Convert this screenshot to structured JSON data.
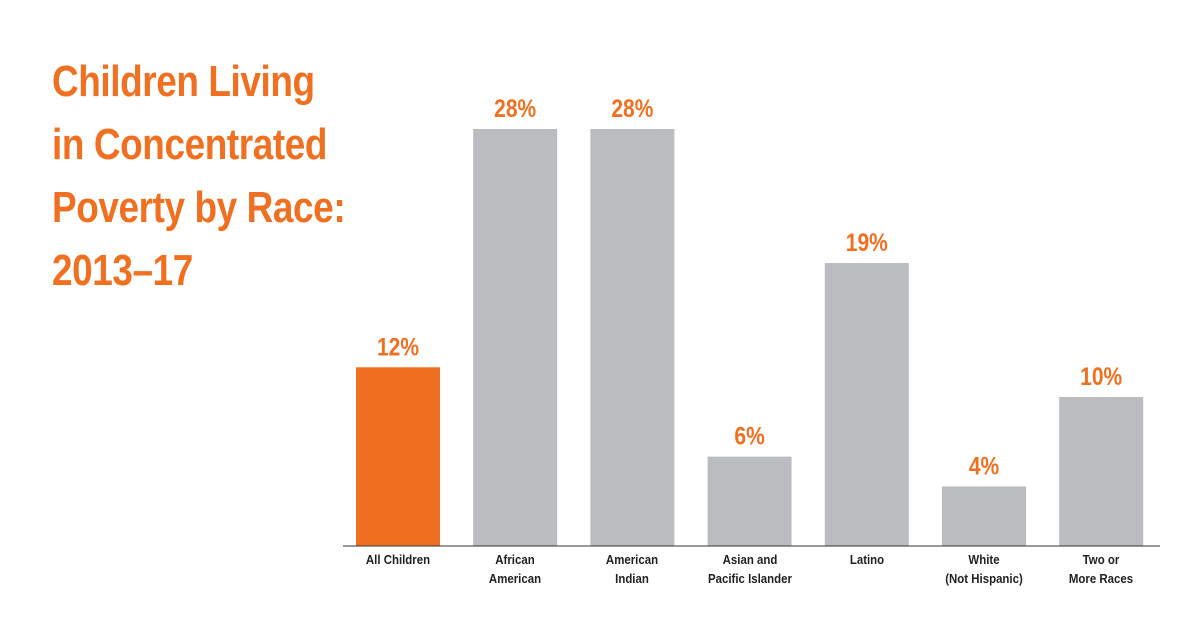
{
  "chart_data": {
    "type": "bar",
    "title": "Children Living\nin Concentrated\nPoverty by Race:\n2013–17",
    "categories": [
      "All Children",
      "African\nAmerican",
      "American\nIndian",
      "Asian and\nPacific Islander",
      "Latino",
      "White\n(Not Hispanic)",
      "Two or\nMore Races"
    ],
    "values": [
      12,
      28,
      28,
      6,
      19,
      4,
      10
    ],
    "value_labels": [
      "12%",
      "28%",
      "28%",
      "6%",
      "19%",
      "4%",
      "10%"
    ],
    "colors": [
      "#f07022",
      "#bbbcbf",
      "#bbbcbf",
      "#bbbcbf",
      "#bbbcbf",
      "#bbbcbf",
      "#bbbcbf"
    ],
    "label_color": "#f07022"
  }
}
